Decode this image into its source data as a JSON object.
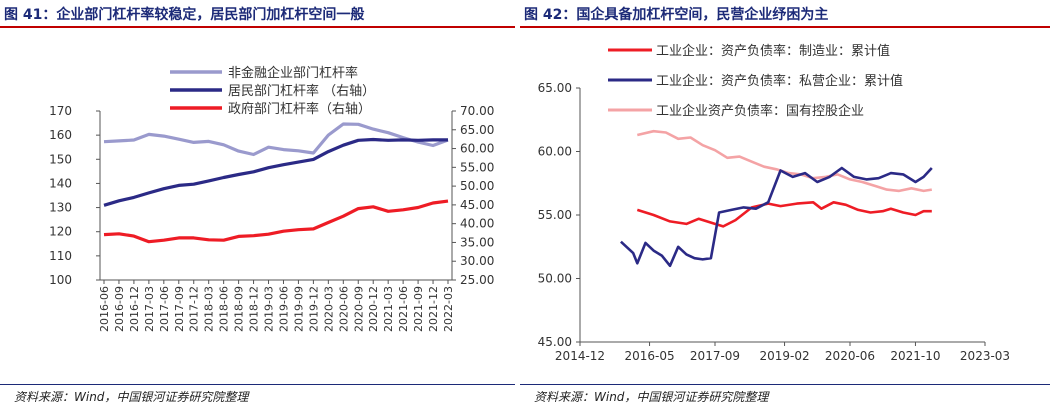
{
  "left": {
    "title": "图 41：企业部门杠杆率较稳定，居民部门加杠杆空间一般",
    "source": "资料来源：Wind，中国银河证券研究院整理"
  },
  "right": {
    "title": "图 42：国企具备加杠杆空间，民营企业纾困为主",
    "source": "资料来源：Wind，中国银河证券研究院整理"
  },
  "colors": {
    "title": "#1c2a78",
    "rule": "#c00000",
    "lavender": "#9a9acd",
    "navy": "#2b2a86",
    "red": "#ee1c25",
    "pink": "#f4a3a5"
  },
  "chart_data": [
    {
      "type": "line",
      "title": "图 41：企业部门杠杆率较稳定，居民部门加杠杆空间一般",
      "categories": [
        "2016-06",
        "2016-09",
        "2016-12",
        "2017-03",
        "2017-06",
        "2017-09",
        "2017-12",
        "2018-03",
        "2018-06",
        "2018-09",
        "2018-12",
        "2019-03",
        "2019-06",
        "2019-09",
        "2019-12",
        "2020-03",
        "2020-06",
        "2020-09",
        "2020-12",
        "2021-03",
        "2021-06",
        "2021-09",
        "2021-12",
        "2022-03"
      ],
      "left_axis": {
        "min": 100,
        "max": 170,
        "ticks": [
          "100",
          "110",
          "120",
          "130",
          "140",
          "150",
          "160",
          "170"
        ]
      },
      "right_axis": {
        "min": 25,
        "max": 70,
        "ticks": [
          "25.00",
          "30.00",
          "35.00",
          "40.00",
          "45.00",
          "50.00",
          "55.00",
          "60.00",
          "65.00",
          "70.00"
        ]
      },
      "series": [
        {
          "name": "非金融企业部门杠杆率",
          "axis": "left",
          "color": "#9a9acd",
          "values": [
            157.3,
            157.6,
            158.0,
            160.3,
            159.6,
            158.3,
            157.0,
            157.4,
            156.0,
            153.4,
            152.0,
            155.0,
            154.0,
            153.5,
            152.6,
            160.0,
            164.6,
            164.5,
            162.5,
            161.0,
            159.0,
            157.1,
            155.7,
            158.0
          ]
        },
        {
          "name": "居民部门杠杆率  （右轴）",
          "axis": "right",
          "color": "#2b2a86",
          "values": [
            44.9,
            46.1,
            47.0,
            48.2,
            49.3,
            50.2,
            50.5,
            51.4,
            52.3,
            53.1,
            53.8,
            54.9,
            55.7,
            56.4,
            57.1,
            59.2,
            60.9,
            62.2,
            62.4,
            62.2,
            62.3,
            62.2,
            62.3,
            62.3
          ]
        },
        {
          "name": "政府部门杠杆率（右轴）",
          "axis": "right",
          "color": "#ee1c25",
          "values": [
            37.1,
            37.3,
            36.7,
            35.2,
            35.6,
            36.2,
            36.2,
            35.7,
            35.6,
            36.6,
            36.8,
            37.2,
            38.0,
            38.4,
            38.6,
            40.3,
            42.0,
            44.0,
            44.5,
            43.3,
            43.7,
            44.3,
            45.5,
            46.0
          ]
        }
      ]
    },
    {
      "type": "line",
      "title": "图 42：国企具备加杠杆空间，民营企业纾困为主",
      "x_range": [
        "2014-12",
        "2023-03"
      ],
      "x_ticks": [
        "2014-12",
        "2016-05",
        "2017-09",
        "2019-02",
        "2020-06",
        "2021-10",
        "2023-03"
      ],
      "y_axis": {
        "min": 45,
        "max": 65,
        "ticks": [
          "45.00",
          "50.00",
          "55.00",
          "60.00",
          "65.00"
        ]
      },
      "series": [
        {
          "name": "工业企业：资产负债率：制造业：累计值",
          "color": "#ee1c25",
          "x": [
            "2016-02",
            "2016-06",
            "2016-10",
            "2017-02",
            "2017-05",
            "2017-09",
            "2017-11",
            "2018-02",
            "2018-06",
            "2018-10",
            "2019-01",
            "2019-05",
            "2019-09",
            "2019-11",
            "2020-02",
            "2020-05",
            "2020-08",
            "2020-11",
            "2021-02",
            "2021-04",
            "2021-07",
            "2021-10",
            "2021-12",
            "2022-02"
          ],
          "values": [
            55.4,
            55.0,
            54.5,
            54.3,
            54.7,
            54.3,
            54.1,
            54.6,
            55.6,
            55.9,
            55.7,
            55.9,
            56.0,
            55.5,
            56.0,
            55.8,
            55.4,
            55.2,
            55.3,
            55.5,
            55.2,
            55.0,
            55.3,
            55.3
          ]
        },
        {
          "name": "工业企业：资产负债率：私营企业：累计值",
          "color": "#2b2a86",
          "x": [
            "2015-10",
            "2016-01",
            "2016-02",
            "2016-04",
            "2016-06",
            "2016-08",
            "2016-10",
            "2016-12",
            "2017-02",
            "2017-04",
            "2017-06",
            "2017-08",
            "2017-10",
            "2018-01",
            "2018-04",
            "2018-07",
            "2018-10",
            "2019-01",
            "2019-04",
            "2019-07",
            "2019-10",
            "2020-01",
            "2020-04",
            "2020-07",
            "2020-10",
            "2021-01",
            "2021-04",
            "2021-07",
            "2021-10",
            "2021-12",
            "2022-02"
          ],
          "values": [
            52.9,
            52.0,
            51.2,
            52.8,
            52.2,
            51.8,
            51.0,
            52.5,
            51.9,
            51.6,
            51.5,
            51.6,
            55.2,
            55.4,
            55.6,
            55.5,
            56.0,
            58.5,
            58.0,
            58.3,
            57.6,
            58.0,
            58.7,
            58.0,
            57.8,
            57.9,
            58.3,
            58.2,
            57.6,
            58.0,
            58.7
          ]
        },
        {
          "name": "工业企业资产负债率：国有控股企业",
          "color": "#f4a3a5",
          "x": [
            "2016-02",
            "2016-06",
            "2016-09",
            "2016-12",
            "2017-03",
            "2017-06",
            "2017-09",
            "2017-12",
            "2018-03",
            "2018-06",
            "2018-09",
            "2018-12",
            "2019-03",
            "2019-06",
            "2019-09",
            "2019-12",
            "2020-03",
            "2020-06",
            "2020-09",
            "2020-12",
            "2021-03",
            "2021-06",
            "2021-09",
            "2021-12",
            "2022-02"
          ],
          "values": [
            61.3,
            61.6,
            61.5,
            61.0,
            61.1,
            60.5,
            60.1,
            59.5,
            59.6,
            59.2,
            58.8,
            58.6,
            58.3,
            58.2,
            57.9,
            58.0,
            58.2,
            57.8,
            57.6,
            57.3,
            57.0,
            56.9,
            57.1,
            56.9,
            57.0
          ]
        }
      ]
    }
  ]
}
